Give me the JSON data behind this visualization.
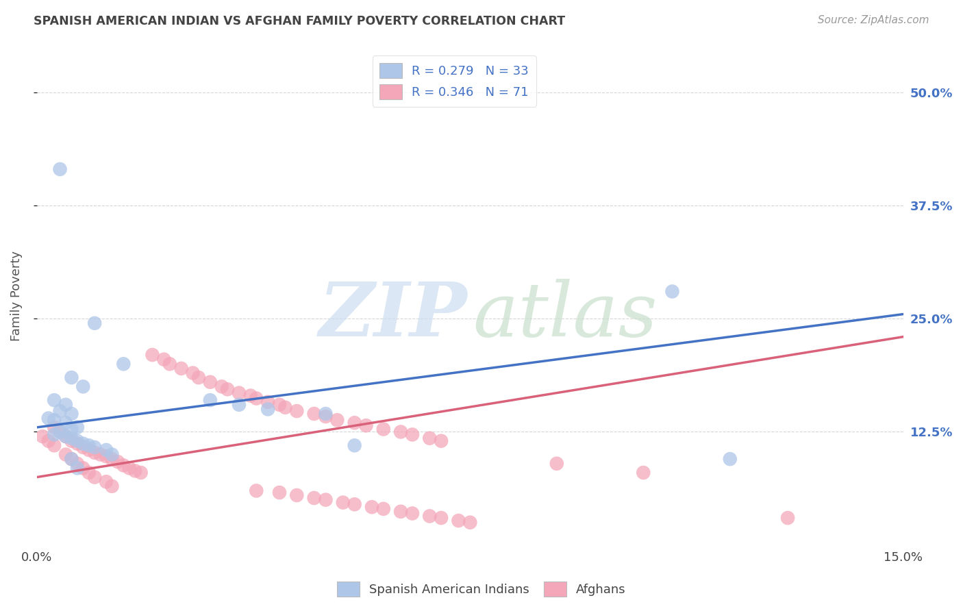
{
  "title": "SPANISH AMERICAN INDIAN VS AFGHAN FAMILY POVERTY CORRELATION CHART",
  "source": "Source: ZipAtlas.com",
  "ylabel": "Family Poverty",
  "ytick_labels": [
    "12.5%",
    "25.0%",
    "37.5%",
    "50.0%"
  ],
  "ytick_values": [
    0.125,
    0.25,
    0.375,
    0.5
  ],
  "xlim": [
    0.0,
    0.15
  ],
  "ylim": [
    0.0,
    0.55
  ],
  "blue_scatter_x": [
    0.004,
    0.01,
    0.015,
    0.006,
    0.008,
    0.003,
    0.005,
    0.004,
    0.006,
    0.002,
    0.003,
    0.005,
    0.007,
    0.006,
    0.004,
    0.003,
    0.005,
    0.006,
    0.007,
    0.008,
    0.009,
    0.01,
    0.012,
    0.013,
    0.006,
    0.007,
    0.03,
    0.035,
    0.04,
    0.05,
    0.055,
    0.11,
    0.12
  ],
  "blue_scatter_y": [
    0.415,
    0.245,
    0.2,
    0.185,
    0.175,
    0.16,
    0.155,
    0.148,
    0.145,
    0.14,
    0.138,
    0.135,
    0.13,
    0.128,
    0.125,
    0.122,
    0.12,
    0.118,
    0.115,
    0.112,
    0.11,
    0.108,
    0.105,
    0.1,
    0.095,
    0.085,
    0.16,
    0.155,
    0.15,
    0.145,
    0.11,
    0.28,
    0.095
  ],
  "pink_scatter_x": [
    0.001,
    0.002,
    0.003,
    0.003,
    0.004,
    0.005,
    0.005,
    0.006,
    0.006,
    0.007,
    0.007,
    0.008,
    0.008,
    0.009,
    0.009,
    0.01,
    0.01,
    0.011,
    0.012,
    0.012,
    0.013,
    0.013,
    0.014,
    0.015,
    0.016,
    0.017,
    0.018,
    0.02,
    0.022,
    0.023,
    0.025,
    0.027,
    0.028,
    0.03,
    0.032,
    0.033,
    0.035,
    0.037,
    0.038,
    0.04,
    0.042,
    0.043,
    0.045,
    0.048,
    0.05,
    0.052,
    0.055,
    0.057,
    0.06,
    0.063,
    0.065,
    0.068,
    0.07,
    0.038,
    0.042,
    0.045,
    0.048,
    0.05,
    0.053,
    0.055,
    0.058,
    0.06,
    0.063,
    0.065,
    0.068,
    0.07,
    0.073,
    0.075,
    0.09,
    0.105,
    0.13
  ],
  "pink_scatter_y": [
    0.12,
    0.115,
    0.11,
    0.13,
    0.125,
    0.12,
    0.1,
    0.115,
    0.095,
    0.112,
    0.09,
    0.108,
    0.085,
    0.105,
    0.08,
    0.102,
    0.075,
    0.1,
    0.098,
    0.07,
    0.095,
    0.065,
    0.092,
    0.088,
    0.085,
    0.082,
    0.08,
    0.21,
    0.205,
    0.2,
    0.195,
    0.19,
    0.185,
    0.18,
    0.175,
    0.172,
    0.168,
    0.165,
    0.162,
    0.158,
    0.155,
    0.152,
    0.148,
    0.145,
    0.142,
    0.138,
    0.135,
    0.132,
    0.128,
    0.125,
    0.122,
    0.118,
    0.115,
    0.06,
    0.058,
    0.055,
    0.052,
    0.05,
    0.047,
    0.045,
    0.042,
    0.04,
    0.037,
    0.035,
    0.032,
    0.03,
    0.027,
    0.025,
    0.09,
    0.08,
    0.03
  ],
  "blue_line_x": [
    0.0,
    0.15
  ],
  "blue_line_y": [
    0.13,
    0.255
  ],
  "pink_line_x": [
    0.0,
    0.15
  ],
  "pink_line_y": [
    0.075,
    0.23
  ],
  "background_color": "#ffffff",
  "grid_color": "#cccccc",
  "title_color": "#444444",
  "scatter_blue": "#aec6e8",
  "scatter_pink": "#f4a7b9",
  "line_blue": "#4472c4",
  "line_pink": "#d9627a",
  "right_tick_color": "#4472c4",
  "watermark_zip_color": "#ccddf0",
  "watermark_atlas_color": "#c8e0cc"
}
